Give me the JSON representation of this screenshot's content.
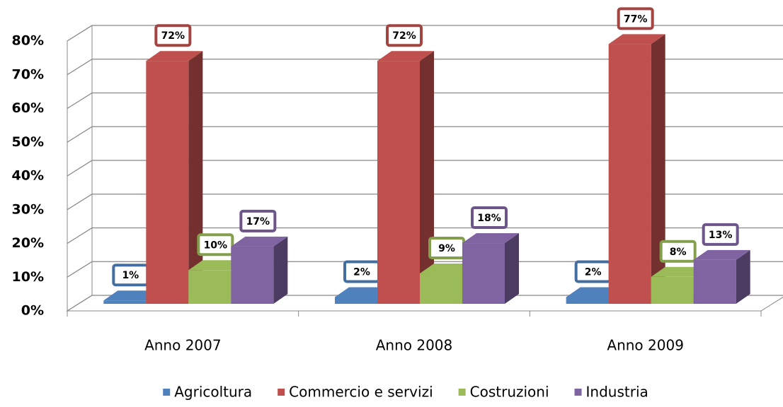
{
  "chart_data": {
    "type": "bar3d",
    "categories": [
      "Anno 2007",
      "Anno 2008",
      "Anno 2009"
    ],
    "series": [
      {
        "name": "Agricoltura",
        "color": "#4f81bd",
        "values": [
          1,
          2,
          2
        ],
        "value_labels": [
          "1%",
          "2%",
          "2%"
        ]
      },
      {
        "name": "Commercio e servizi",
        "color": "#c0504d",
        "values": [
          72,
          72,
          77
        ],
        "value_labels": [
          "72%",
          "72%",
          "77%"
        ]
      },
      {
        "name": "Costruzioni",
        "color": "#9bbb59",
        "values": [
          10,
          9,
          8
        ],
        "value_labels": [
          "10%",
          "9%",
          "8%"
        ]
      },
      {
        "name": "Industria",
        "color": "#8064a2",
        "values": [
          17,
          18,
          13
        ],
        "value_labels": [
          "17%",
          "18%",
          "13%"
        ]
      }
    ],
    "ylim": [
      0,
      80
    ],
    "yticks": [
      {
        "value": 0,
        "label": "0%"
      },
      {
        "value": 10,
        "label": "10%"
      },
      {
        "value": 20,
        "label": "20%"
      },
      {
        "value": 30,
        "label": "30%"
      },
      {
        "value": 40,
        "label": "40%"
      },
      {
        "value": 50,
        "label": "50%"
      },
      {
        "value": 60,
        "label": "60%"
      },
      {
        "value": 70,
        "label": "70%"
      },
      {
        "value": 80,
        "label": "80%"
      }
    ],
    "grid": true,
    "legend": "bottom"
  }
}
